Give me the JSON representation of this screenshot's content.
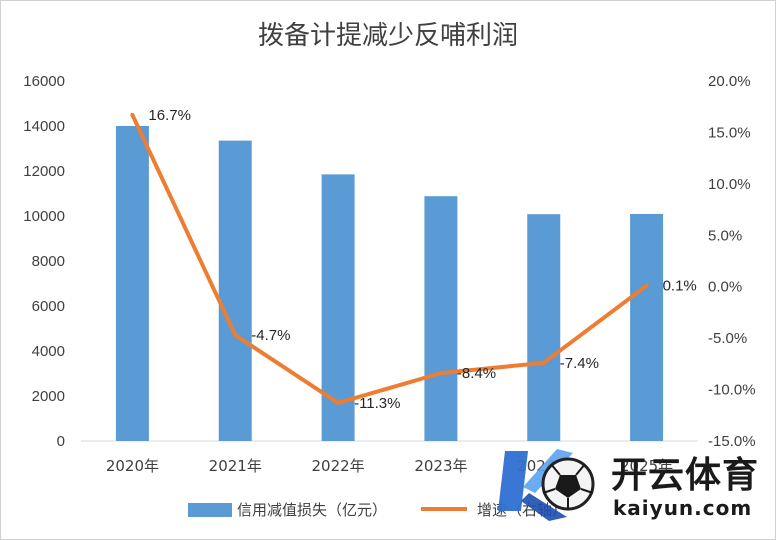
{
  "chart_data": {
    "type": "bar+line",
    "title": "拨备计提减少反哺利润",
    "categories": [
      "2020年",
      "2021年",
      "2022年",
      "2023年",
      "2024年",
      "2025年"
    ],
    "series": [
      {
        "name": "信用减值损失（亿元）",
        "type": "bar",
        "axis": "left",
        "color": "#5B9BD5",
        "values": [
          14000,
          13350,
          11850,
          10880,
          10080,
          10090
        ]
      },
      {
        "name": "增速（右轴）",
        "type": "line",
        "axis": "right",
        "color": "#ED7D31",
        "values": [
          16.7,
          -4.7,
          -11.3,
          -8.4,
          -7.4,
          0.1
        ],
        "labels": [
          "16.7%",
          "-4.7%",
          "-11.3%",
          "-8.4%",
          "-7.4%",
          "0.1%"
        ]
      }
    ],
    "y_left": {
      "min": 0,
      "max": 16000,
      "step": 2000,
      "ticks": [
        "0",
        "2000",
        "4000",
        "6000",
        "8000",
        "10000",
        "12000",
        "14000",
        "16000"
      ]
    },
    "y_right": {
      "min": -15,
      "max": 20,
      "step": 5,
      "ticks": [
        "-15.0%",
        "-10.0%",
        "-5.0%",
        "0.0%",
        "5.0%",
        "10.0%",
        "15.0%",
        "20.0%"
      ]
    },
    "grid": false,
    "legend_position": "bottom"
  },
  "watermark": {
    "text": "开云体育",
    "subtext": "kaiyun.com",
    "icon": "soccer-ball-k-logo",
    "colors": [
      "#1a1a1a",
      "#2f6fd1",
      "#f2f2f2"
    ]
  }
}
